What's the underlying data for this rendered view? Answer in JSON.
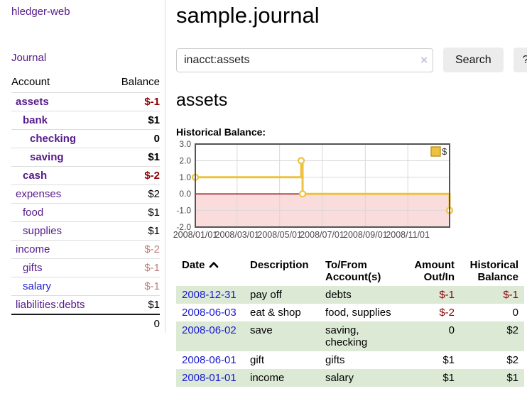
{
  "app_title": "hledger-web",
  "sidebar": {
    "journal_link": "Journal",
    "account_header": "Account",
    "balance_header": "Balance",
    "rows": [
      {
        "account": "assets",
        "balance": "$-1"
      },
      {
        "account": "bank",
        "balance": "$1"
      },
      {
        "account": "checking",
        "balance": "0"
      },
      {
        "account": "saving",
        "balance": "$1"
      },
      {
        "account": "cash",
        "balance": "$-2"
      },
      {
        "account": "expenses",
        "balance": "$2"
      },
      {
        "account": "food",
        "balance": "$1"
      },
      {
        "account": "supplies",
        "balance": "$1"
      },
      {
        "account": "income",
        "balance": "$-2"
      },
      {
        "account": "gifts",
        "balance": "$-1"
      },
      {
        "account": "salary",
        "balance": "$-1"
      },
      {
        "account": "liabilities:debts",
        "balance": "$1"
      }
    ],
    "total": "0"
  },
  "header": {
    "title": "sample.journal"
  },
  "search": {
    "value": "inacct:assets",
    "clear_icon": "×",
    "search_button": "Search",
    "help_button": "?"
  },
  "account_page": {
    "heading": "assets",
    "chart_label": "Historical Balance:"
  },
  "chart_data": {
    "type": "line",
    "style": "step",
    "title": "Historical Balance",
    "series": [
      {
        "name": "$",
        "color": "#edc240",
        "points": [
          [
            "2008-01-01",
            1
          ],
          [
            "2008-06-01",
            2
          ],
          [
            "2008-06-03",
            0
          ],
          [
            "2008-12-31",
            -1
          ]
        ]
      }
    ],
    "ylim": [
      -2,
      3
    ],
    "y_ticks": [
      "3.0",
      "2.0",
      "1.0",
      "0.0",
      "-1.0",
      "-2.0"
    ],
    "y_tick_values": [
      3,
      2,
      1,
      0,
      -1,
      -2
    ],
    "x_ticks": [
      "2008/01/01",
      "2008/03/01",
      "2008/05/01",
      "2008/07/01",
      "2008/09/01",
      "2008/11/01"
    ],
    "x_tick_dates": [
      "2008-01-01",
      "2008-03-01",
      "2008-05-01",
      "2008-07-01",
      "2008-09-01",
      "2008-11-01"
    ],
    "x_range": [
      "2008-01-01",
      "2008-12-31"
    ],
    "grid": true,
    "legend": {
      "label": "$",
      "position": "top-right"
    },
    "negative_region_fill": "#fbdcdc",
    "zero_line_color": "#a01010",
    "border_color": "#545454",
    "grid_color": "#d8d8d8"
  },
  "register": {
    "headers": {
      "date": "Date",
      "description": "Description",
      "tofrom": "To/From Account(s)",
      "amount": "Amount Out/In",
      "balance": "Historical Balance"
    },
    "rows": [
      {
        "date": "2008-12-31",
        "description": "pay off",
        "accounts": "debts",
        "amount": "$-1",
        "balance": "$-1"
      },
      {
        "date": "2008-06-03",
        "description": "eat & shop",
        "accounts": "food, supplies",
        "amount": "$-2",
        "balance": "0"
      },
      {
        "date": "2008-06-02",
        "description": "save",
        "accounts": "saving, checking",
        "amount": "0",
        "balance": "$2"
      },
      {
        "date": "2008-06-01",
        "description": "gift",
        "accounts": "gifts",
        "amount": "$1",
        "balance": "$2"
      },
      {
        "date": "2008-01-01",
        "description": "income",
        "accounts": "salary",
        "amount": "$1",
        "balance": "$1"
      }
    ]
  }
}
